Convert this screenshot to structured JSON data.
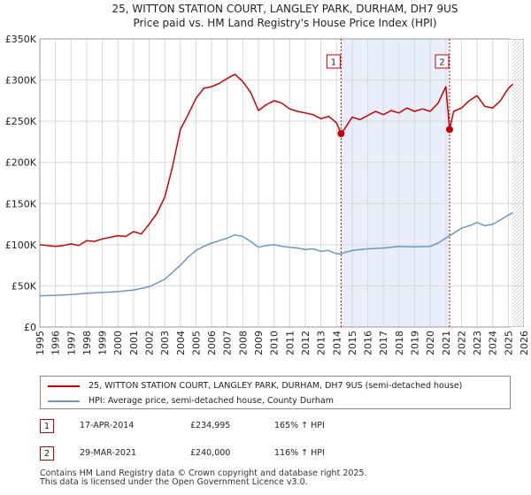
{
  "chart_data": {
    "type": "line",
    "title": "25, WITTON STATION COURT, LANGLEY PARK, DURHAM, DH7 9US",
    "subtitle": "Price paid vs. HM Land Registry's House Price Index (HPI)",
    "xlim": [
      1995,
      2026
    ],
    "ylim": [
      0,
      350000
    ],
    "x_ticks": [
      "1995",
      "1996",
      "1997",
      "1998",
      "1999",
      "2000",
      "2001",
      "2002",
      "2003",
      "2004",
      "2005",
      "2006",
      "2007",
      "2008",
      "2009",
      "2010",
      "2011",
      "2012",
      "2013",
      "2014",
      "2015",
      "2016",
      "2017",
      "2018",
      "2019",
      "2020",
      "2021",
      "2022",
      "2023",
      "2024",
      "2025",
      "2026"
    ],
    "y_ticks": [
      {
        "value": 0,
        "label": "£0"
      },
      {
        "value": 50000,
        "label": "£50K"
      },
      {
        "value": 100000,
        "label": "£100K"
      },
      {
        "value": 150000,
        "label": "£150K"
      },
      {
        "value": 200000,
        "label": "£200K"
      },
      {
        "value": 250000,
        "label": "£250K"
      },
      {
        "value": 300000,
        "label": "£300K"
      },
      {
        "value": 350000,
        "label": "£350K"
      }
    ],
    "grid": true,
    "shaded_period": [
      2014.29,
      2021.24
    ],
    "series": [
      {
        "name": "25, WITTON STATION COURT, LANGLEY PARK, DURHAM, DH7 9US (semi-detached house)",
        "color": "#cc0000",
        "points": [
          [
            1995.0,
            100000
          ],
          [
            1995.5,
            99000
          ],
          [
            1996.0,
            98000
          ],
          [
            1996.5,
            99000
          ],
          [
            1997.0,
            101000
          ],
          [
            1997.5,
            99000
          ],
          [
            1998.0,
            105000
          ],
          [
            1998.5,
            104000
          ],
          [
            1999.0,
            107000
          ],
          [
            1999.5,
            109000
          ],
          [
            2000.0,
            111000
          ],
          [
            2000.5,
            110000
          ],
          [
            2001.0,
            116000
          ],
          [
            2001.5,
            113000
          ],
          [
            2002.0,
            125000
          ],
          [
            2002.5,
            138000
          ],
          [
            2003.0,
            158000
          ],
          [
            2003.5,
            195000
          ],
          [
            2004.0,
            240000
          ],
          [
            2004.5,
            258000
          ],
          [
            2005.0,
            278000
          ],
          [
            2005.5,
            290000
          ],
          [
            2006.0,
            292000
          ],
          [
            2006.5,
            296000
          ],
          [
            2007.0,
            302000
          ],
          [
            2007.5,
            307000
          ],
          [
            2008.0,
            298000
          ],
          [
            2008.5,
            285000
          ],
          [
            2009.0,
            263000
          ],
          [
            2009.5,
            270000
          ],
          [
            2010.0,
            275000
          ],
          [
            2010.5,
            272000
          ],
          [
            2011.0,
            265000
          ],
          [
            2011.5,
            262000
          ],
          [
            2012.0,
            260000
          ],
          [
            2012.5,
            258000
          ],
          [
            2013.0,
            253000
          ],
          [
            2013.5,
            256000
          ],
          [
            2014.0,
            248000
          ],
          [
            2014.29,
            234995
          ],
          [
            2014.6,
            243000
          ],
          [
            2015.0,
            255000
          ],
          [
            2015.5,
            252000
          ],
          [
            2016.0,
            257000
          ],
          [
            2016.5,
            262000
          ],
          [
            2017.0,
            258000
          ],
          [
            2017.5,
            263000
          ],
          [
            2018.0,
            260000
          ],
          [
            2018.5,
            266000
          ],
          [
            2019.0,
            262000
          ],
          [
            2019.5,
            265000
          ],
          [
            2020.0,
            262000
          ],
          [
            2020.5,
            272000
          ],
          [
            2021.0,
            292000
          ],
          [
            2021.24,
            240000
          ],
          [
            2021.5,
            262000
          ],
          [
            2022.0,
            266000
          ],
          [
            2022.5,
            275000
          ],
          [
            2023.0,
            281000
          ],
          [
            2023.5,
            268000
          ],
          [
            2024.0,
            266000
          ],
          [
            2024.5,
            275000
          ],
          [
            2025.0,
            290000
          ],
          [
            2025.3,
            295000
          ]
        ]
      },
      {
        "name": "HPI: Average price, semi-detached house, County Durham",
        "color": "#6a96c8",
        "points": [
          [
            1995.0,
            38000
          ],
          [
            1996.0,
            38500
          ],
          [
            1997.0,
            39500
          ],
          [
            1998.0,
            41000
          ],
          [
            1999.0,
            42000
          ],
          [
            2000.0,
            43000
          ],
          [
            2001.0,
            45000
          ],
          [
            2002.0,
            49000
          ],
          [
            2003.0,
            58000
          ],
          [
            2004.0,
            75000
          ],
          [
            2004.5,
            85000
          ],
          [
            2005.0,
            93000
          ],
          [
            2005.5,
            98000
          ],
          [
            2006.0,
            102000
          ],
          [
            2006.5,
            105000
          ],
          [
            2007.0,
            108000
          ],
          [
            2007.5,
            112000
          ],
          [
            2008.0,
            110000
          ],
          [
            2008.5,
            104000
          ],
          [
            2009.0,
            97000
          ],
          [
            2009.5,
            99000
          ],
          [
            2010.0,
            100000
          ],
          [
            2010.5,
            98000
          ],
          [
            2011.0,
            97000
          ],
          [
            2011.5,
            96000
          ],
          [
            2012.0,
            94000
          ],
          [
            2012.5,
            95000
          ],
          [
            2013.0,
            92000
          ],
          [
            2013.5,
            93000
          ],
          [
            2014.0,
            89000
          ],
          [
            2014.29,
            88800
          ],
          [
            2014.6,
            91000
          ],
          [
            2015.0,
            93000
          ],
          [
            2016.0,
            95000
          ],
          [
            2017.0,
            96000
          ],
          [
            2018.0,
            98000
          ],
          [
            2019.0,
            97500
          ],
          [
            2020.0,
            98000
          ],
          [
            2020.5,
            102000
          ],
          [
            2021.0,
            108000
          ],
          [
            2021.24,
            111000
          ],
          [
            2021.5,
            114000
          ],
          [
            2022.0,
            120000
          ],
          [
            2022.5,
            123000
          ],
          [
            2023.0,
            127000
          ],
          [
            2023.5,
            123000
          ],
          [
            2024.0,
            125000
          ],
          [
            2024.5,
            130000
          ],
          [
            2025.0,
            136000
          ],
          [
            2025.3,
            139000
          ]
        ]
      }
    ],
    "markers": [
      {
        "label": "1",
        "x": 2014.29,
        "y": 234995
      },
      {
        "label": "2",
        "x": 2021.24,
        "y": 240000
      }
    ]
  },
  "legend": {
    "property_label": "25, WITTON STATION COURT, LANGLEY PARK, DURHAM, DH7 9US (semi-detached house)",
    "hpi_label": "HPI: Average price, semi-detached house, County Durham"
  },
  "sales": [
    {
      "num": "1",
      "date": "17-APR-2014",
      "price": "£234,995",
      "hpi": "165% ↑ HPI"
    },
    {
      "num": "2",
      "date": "29-MAR-2021",
      "price": "£240,000",
      "hpi": "116% ↑ HPI"
    }
  ],
  "footer": {
    "line1": "Contains HM Land Registry data © Crown copyright and database right 2025.",
    "line2": "This data is licensed under the Open Government Licence v3.0."
  }
}
